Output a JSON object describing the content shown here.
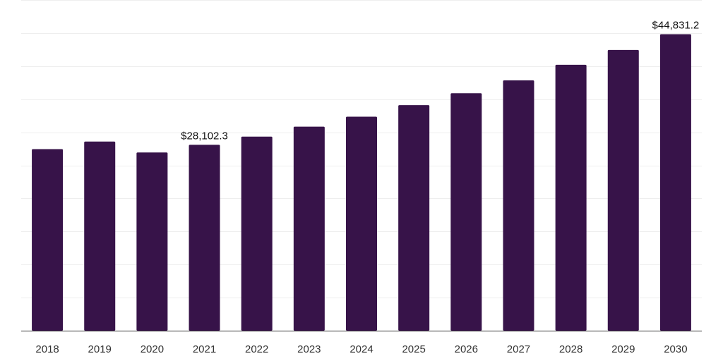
{
  "chart_data": {
    "type": "bar",
    "categories": [
      "2018",
      "2019",
      "2020",
      "2021",
      "2022",
      "2023",
      "2024",
      "2025",
      "2026",
      "2027",
      "2028",
      "2029",
      "2030"
    ],
    "values": [
      27450,
      28600,
      26950,
      28102.3,
      29350,
      30850,
      32350,
      34100,
      35900,
      37850,
      40200,
      42450,
      44831.2
    ],
    "data_labels": [
      {
        "index": 3,
        "text": "$28,102.3"
      },
      {
        "index": 12,
        "text": "$44,831.2"
      }
    ],
    "title": "",
    "xlabel": "",
    "ylabel": "",
    "ylim": [
      0,
      50000
    ],
    "grid": true,
    "gridline_count": 10,
    "legend": "none",
    "colors": {
      "bar": "#371349",
      "grid": "#eeeeee",
      "axis": "#333333"
    }
  }
}
